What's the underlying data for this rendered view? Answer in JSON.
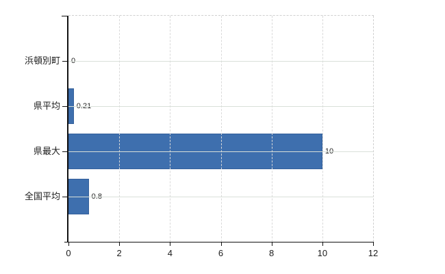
{
  "chart_data": {
    "type": "bar",
    "orientation": "horizontal",
    "title": "",
    "xlabel": "",
    "ylabel": "",
    "categories": [
      "浜頓別町",
      "県平均",
      "県最大",
      "全国平均"
    ],
    "values": [
      0,
      0.21,
      10,
      0.8
    ],
    "value_labels": [
      "0",
      "0.21",
      "10",
      "0.8"
    ],
    "xlim": [
      0,
      12
    ],
    "x_ticks": [
      0,
      2,
      4,
      6,
      8,
      10,
      12
    ],
    "x_tick_labels": [
      "0",
      "2",
      "4",
      "6",
      "8",
      "10",
      "12"
    ],
    "grid": true,
    "legend": "none",
    "bar_color": "#3e6fae",
    "bar_border_color": "#34609b",
    "gridline_color": "#d9e0d9",
    "axis_color": "#111111",
    "border_dash_color": "#cfcfcf",
    "text_color": "#1c1c1c"
  }
}
